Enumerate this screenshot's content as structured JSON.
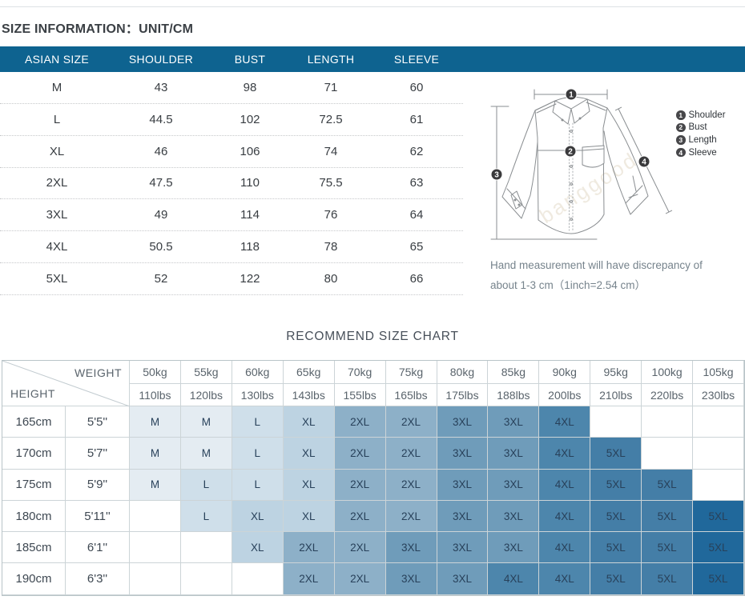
{
  "page": {
    "title": "SIZE INFORMATION：UNIT/CM",
    "recommend_title": "RECOMMEND SIZE CHART",
    "note_line1": "Hand measurement will have discrepancy of",
    "note_line2": "about 1-3 cm（1inch=2.54 cm）",
    "watermark": "banggood"
  },
  "colors": {
    "header_bar": "#0e6390",
    "table_border": "#ccd4d7"
  },
  "size_table": {
    "header": [
      "ASIAN SIZE",
      "SHOULDER",
      "BUST",
      "LENGTH",
      "SLEEVE"
    ],
    "rows": [
      [
        "M",
        "43",
        "98",
        "71",
        "60"
      ],
      [
        "L",
        "44.5",
        "102",
        "72.5",
        "61"
      ],
      [
        "XL",
        "46",
        "106",
        "74",
        "62"
      ],
      [
        "2XL",
        "47.5",
        "110",
        "75.5",
        "63"
      ],
      [
        "3XL",
        "49",
        "114",
        "76",
        "64"
      ],
      [
        "4XL",
        "50.5",
        "118",
        "78",
        "65"
      ],
      [
        "5XL",
        "52",
        "122",
        "80",
        "66"
      ]
    ]
  },
  "diagram": {
    "badges": [
      "1",
      "2",
      "3",
      "4"
    ],
    "legend": [
      {
        "num": "1",
        "label": "Shoulder"
      },
      {
        "num": "2",
        "label": "Bust"
      },
      {
        "num": "3",
        "label": "Length"
      },
      {
        "num": "4",
        "label": "Sleeve"
      }
    ]
  },
  "recommend_chart": {
    "corner": {
      "weight_label": "WEIGHT",
      "height_label": "HEIGHT"
    },
    "weights_kg": [
      "50kg",
      "55kg",
      "60kg",
      "65kg",
      "70kg",
      "75kg",
      "80kg",
      "85kg",
      "90kg",
      "95kg",
      "100kg",
      "105kg"
    ],
    "weights_lbs": [
      "110lbs",
      "120lbs",
      "130lbs",
      "143lbs",
      "155lbs",
      "165lbs",
      "175lbs",
      "188lbs",
      "200lbs",
      "210lbs",
      "220lbs",
      "230lbs"
    ],
    "rows": [
      {
        "height_cm": "165cm",
        "height_ft": "5'5''",
        "cells": [
          "M",
          "M",
          "L",
          "XL",
          "2XL",
          "2XL",
          "3XL",
          "3XL",
          "4XL",
          "",
          "",
          ""
        ]
      },
      {
        "height_cm": "170cm",
        "height_ft": "5'7''",
        "cells": [
          "M",
          "M",
          "L",
          "XL",
          "2XL",
          "2XL",
          "3XL",
          "3XL",
          "4XL",
          "5XL",
          "",
          ""
        ]
      },
      {
        "height_cm": "175cm",
        "height_ft": "5'9''",
        "cells": [
          "M",
          "L",
          "L",
          "XL",
          "2XL",
          "2XL",
          "3XL",
          "3XL",
          "4XL",
          "5XL",
          "5XL",
          ""
        ]
      },
      {
        "height_cm": "180cm",
        "height_ft": "5'11''",
        "cells": [
          "",
          "L",
          "XL",
          "XL",
          "2XL",
          "2XL",
          "3XL",
          "3XL",
          "4XL",
          "5XL",
          "5XL",
          "5XL"
        ]
      },
      {
        "height_cm": "185cm",
        "height_ft": "6'1''",
        "cells": [
          "",
          "",
          "XL",
          "2XL",
          "2XL",
          "3XL",
          "3XL",
          "3XL",
          "4XL",
          "5XL",
          "5XL",
          "5XL"
        ]
      },
      {
        "height_cm": "190cm",
        "height_ft": "6'3''",
        "cells": [
          "",
          "",
          "",
          "2XL",
          "2XL",
          "3XL",
          "3XL",
          "4XL",
          "4XL",
          "5XL",
          "5XL",
          "5XL"
        ]
      }
    ],
    "size_colors": {
      "M": "#e4ecf2",
      "L": "#cfdfea",
      "XL": "#bdd3e2",
      "2XL": "#8db0c8",
      "3XL": "#6f9cba",
      "4XL": "#4d86ac",
      "5XL": "#447ea7",
      "5XL_dark": "#20689b"
    }
  }
}
